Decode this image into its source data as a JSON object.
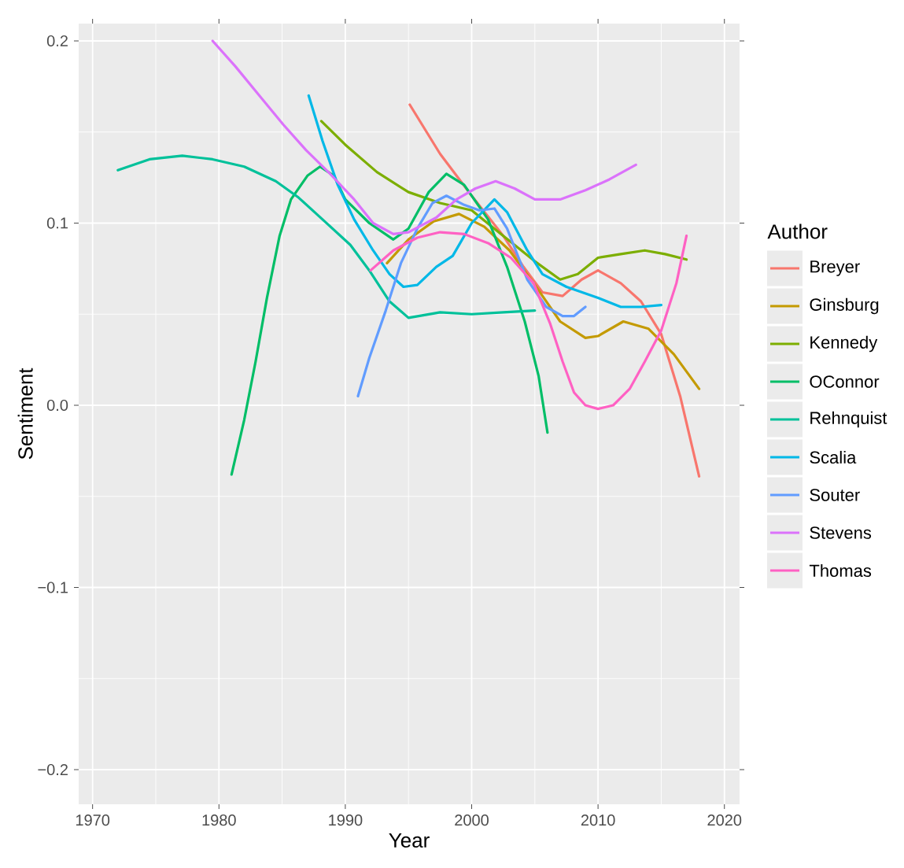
{
  "chart_data": {
    "type": "line",
    "xlabel": "Year",
    "ylabel": "Sentiment",
    "legend_title": "Author",
    "legend": "right",
    "grid": true,
    "line_style": "solid",
    "xlim": [
      1968.9,
      2021.2
    ],
    "ylim": [
      -0.219,
      0.2095
    ],
    "xticks": [
      1970,
      1980,
      1990,
      2000,
      2010,
      2020
    ],
    "yticks": [
      {
        "value": -0.2,
        "label": "−0.2"
      },
      {
        "value": -0.1,
        "label": "−0.1"
      },
      {
        "value": 0,
        "label": "0.0"
      },
      0.1,
      0.2
    ],
    "series": [
      {
        "name": "Breyer",
        "color": "#F8766D",
        "x": [
          1995.1,
          1997.5,
          2000,
          2002.5,
          2004.1,
          2005.6,
          2007.2,
          2008.7,
          2010,
          2011.8,
          2013.4,
          2015,
          2016.5,
          2018
        ],
        "values": [
          0.165,
          0.138,
          0.115,
          0.093,
          0.076,
          0.062,
          0.06,
          0.069,
          0.074,
          0.067,
          0.057,
          0.039,
          0.005,
          -0.039
        ]
      },
      {
        "name": "Ginsburg",
        "color": "#C49A00",
        "x": [
          1993.3,
          1995,
          1997,
          1999,
          2001,
          2003,
          2005,
          2007,
          2009,
          2010,
          2012,
          2014,
          2016,
          2018
        ],
        "values": [
          0.078,
          0.091,
          0.101,
          0.105,
          0.098,
          0.085,
          0.066,
          0.046,
          0.037,
          0.038,
          0.046,
          0.042,
          0.028,
          0.009
        ]
      },
      {
        "name": "Kennedy",
        "color": "#7CAE00",
        "x": [
          1988.1,
          1990,
          1992.5,
          1995,
          1997.5,
          2000,
          2002.5,
          2005,
          2007,
          2008.4,
          2010,
          2011.8,
          2013.7,
          2015.3,
          2017
        ],
        "values": [
          0.156,
          0.143,
          0.128,
          0.117,
          0.111,
          0.107,
          0.093,
          0.079,
          0.069,
          0.072,
          0.081,
          0.083,
          0.085,
          0.083,
          0.08
        ]
      },
      {
        "name": "OConnor",
        "color": "#00BE67",
        "x": [
          1981,
          1982,
          1982.9,
          1983.8,
          1984.8,
          1985.7,
          1987,
          1988,
          1989.1,
          1990,
          1991.9,
          1993.8,
          1995,
          1996.6,
          1998,
          1999.4,
          2001.3,
          2002.8,
          2004.2,
          2005.3,
          2006
        ],
        "values": [
          -0.038,
          -0.008,
          0.024,
          0.059,
          0.093,
          0.113,
          0.126,
          0.131,
          0.126,
          0.113,
          0.1,
          0.091,
          0.097,
          0.117,
          0.127,
          0.121,
          0.102,
          0.076,
          0.046,
          0.016,
          -0.015
        ]
      },
      {
        "name": "Rehnquist",
        "color": "#00C19A",
        "x": [
          1972,
          1974.5,
          1977.1,
          1979.5,
          1982,
          1984.5,
          1986.3,
          1988.2,
          1990.4,
          1991.9,
          1993.5,
          1995,
          1997.5,
          2000,
          2002.5,
          2005
        ],
        "values": [
          0.129,
          0.135,
          0.137,
          0.135,
          0.131,
          0.123,
          0.114,
          0.102,
          0.088,
          0.074,
          0.057,
          0.048,
          0.051,
          0.05,
          0.051,
          0.052
        ]
      },
      {
        "name": "Scalia",
        "color": "#00B8E7",
        "x": [
          1987.1,
          1988.2,
          1989.4,
          1990.7,
          1992.2,
          1993.5,
          1994.6,
          1995.7,
          1997.2,
          1998.5,
          2000,
          2001.8,
          2002.8,
          2004.4,
          2005.6,
          2007.5,
          2010,
          2011.8,
          2013.4,
          2015
        ],
        "values": [
          0.17,
          0.145,
          0.121,
          0.102,
          0.085,
          0.072,
          0.065,
          0.066,
          0.076,
          0.082,
          0.1,
          0.113,
          0.106,
          0.085,
          0.072,
          0.065,
          0.059,
          0.054,
          0.054,
          0.055
        ]
      },
      {
        "name": "Souter",
        "color": "#619CFF",
        "x": [
          1991,
          1991.9,
          1993.2,
          1994.4,
          1995.7,
          1996.9,
          1998,
          1999.4,
          2000.6,
          2001.8,
          2002.8,
          2004.4,
          2005.9,
          2007.2,
          2008.1,
          2009
        ],
        "values": [
          0.005,
          0.026,
          0.052,
          0.078,
          0.097,
          0.111,
          0.115,
          0.11,
          0.107,
          0.108,
          0.097,
          0.069,
          0.054,
          0.049,
          0.049,
          0.054
        ]
      },
      {
        "name": "Stevens",
        "color": "#DB72FB",
        "x": [
          1979.5,
          1981.3,
          1983.2,
          1985.1,
          1986.9,
          1988.8,
          1990.7,
          1992.2,
          1993.8,
          1995,
          1997.2,
          1998.8,
          2000.3,
          2001.9,
          2003.4,
          2005,
          2007,
          2009,
          2010.9,
          2013
        ],
        "values": [
          0.2,
          0.186,
          0.17,
          0.154,
          0.14,
          0.127,
          0.113,
          0.1,
          0.094,
          0.095,
          0.103,
          0.113,
          0.119,
          0.123,
          0.119,
          0.113,
          0.113,
          0.118,
          0.124,
          0.132
        ]
      },
      {
        "name": "Thomas",
        "color": "#FF61C3",
        "x": [
          1992,
          1993.8,
          1995.7,
          1997.5,
          1999.4,
          2001.3,
          2003.1,
          2004.9,
          2006.2,
          2007.2,
          2008.1,
          2009,
          2010,
          2011.2,
          2012.5,
          2013.7,
          2015,
          2016.2,
          2017
        ],
        "values": [
          0.074,
          0.085,
          0.092,
          0.095,
          0.094,
          0.089,
          0.081,
          0.067,
          0.045,
          0.024,
          0.007,
          0,
          -0.002,
          0,
          0.009,
          0.024,
          0.041,
          0.067,
          0.093
        ]
      }
    ]
  }
}
